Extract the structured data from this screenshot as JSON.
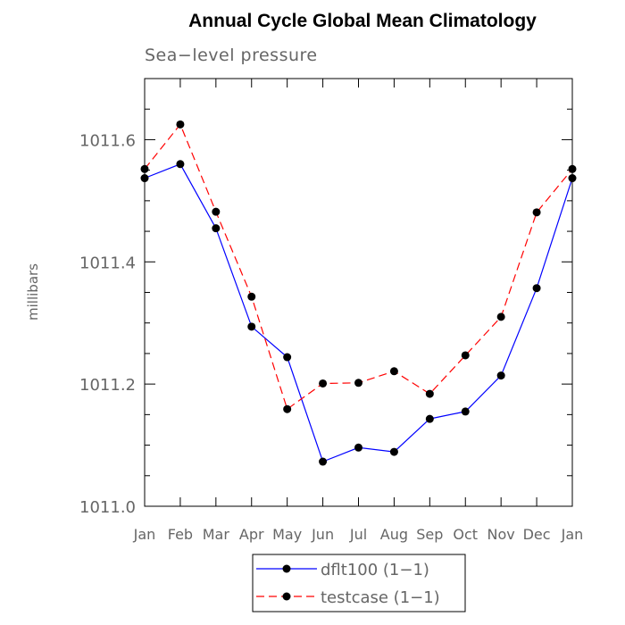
{
  "chart_data": {
    "type": "line",
    "title": "Annual Cycle Global Mean Climatology",
    "subtitle": "Sea−level pressure",
    "ylabel": "millibars",
    "xlabel": "",
    "categories": [
      "Jan",
      "Feb",
      "Mar",
      "Apr",
      "May",
      "Jun",
      "Jul",
      "Aug",
      "Sep",
      "Oct",
      "Nov",
      "Dec",
      "Jan"
    ],
    "ylim": [
      1011.0,
      1011.7
    ],
    "yticks": [
      1011.0,
      1011.2,
      1011.4,
      1011.6
    ],
    "ytick_labels": [
      "1011.0",
      "1011.2",
      "1011.4",
      "1011.6"
    ],
    "grid": false,
    "legend_position": "bottom-center",
    "series": [
      {
        "name": "dflt100 (1−1)",
        "color": "#0000ff",
        "line_style": "solid",
        "values": [
          1011.537,
          1011.56,
          1011.455,
          1011.294,
          1011.244,
          1011.073,
          1011.096,
          1011.089,
          1011.143,
          1011.155,
          1011.214,
          1011.357,
          1011.537
        ]
      },
      {
        "name": "testcase (1−1)",
        "color": "#ff0000",
        "line_style": "dashed",
        "values": [
          1011.552,
          1011.625,
          1011.482,
          1011.343,
          1011.159,
          1011.201,
          1011.202,
          1011.221,
          1011.184,
          1011.247,
          1011.31,
          1011.481,
          1011.552
        ]
      }
    ]
  }
}
